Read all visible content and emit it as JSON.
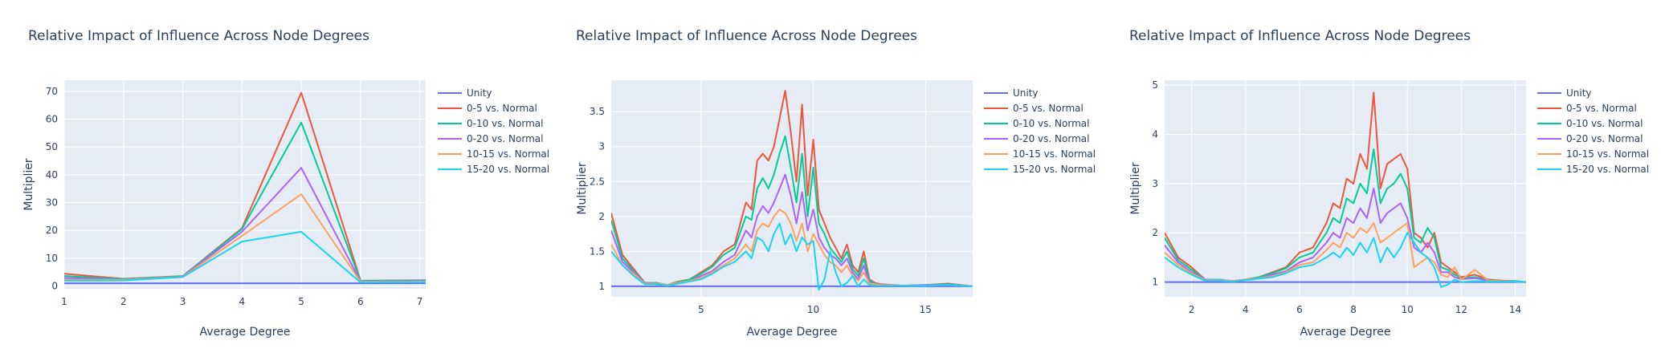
{
  "chart_data": [
    {
      "type": "line",
      "title": "Relative Impact of Influence Across Node Degrees",
      "xlabel": "Average Degree",
      "ylabel": "Multiplier",
      "xlim": [
        1,
        7.1
      ],
      "ylim": [
        -1,
        74
      ],
      "xticks": [
        1,
        2,
        3,
        4,
        5,
        6,
        7
      ],
      "yticks": [
        0,
        10,
        20,
        30,
        40,
        50,
        60,
        70
      ],
      "grid": true,
      "legend_position": "right",
      "series": [
        {
          "name": "Unity",
          "color": "#636efa",
          "x": [
            1,
            2,
            3,
            4,
            5,
            6,
            7.1
          ],
          "y": [
            1,
            1,
            1,
            1,
            1,
            1,
            1
          ]
        },
        {
          "name": "0-5 vs. Normal",
          "color": "#ef553b",
          "x": [
            1,
            2,
            3,
            4,
            5,
            6,
            7.1
          ],
          "y": [
            4.4,
            2.6,
            3.6,
            20.8,
            69.5,
            1.9,
            2.1
          ]
        },
        {
          "name": "0-10 vs. Normal",
          "color": "#00cc96",
          "x": [
            1,
            2,
            3,
            4,
            5,
            6,
            7.1
          ],
          "y": [
            3.6,
            2.5,
            3.5,
            20.5,
            58.8,
            1.8,
            2.0
          ]
        },
        {
          "name": "0-20 vs. Normal",
          "color": "#ab63fa",
          "x": [
            1,
            2,
            3,
            4,
            5,
            6,
            7.1
          ],
          "y": [
            2.9,
            2.3,
            3.4,
            19.5,
            42.5,
            1.6,
            1.8
          ]
        },
        {
          "name": "10-15 vs. Normal",
          "color": "#ffa15a",
          "x": [
            1,
            2,
            3,
            4,
            5,
            6,
            7.1
          ],
          "y": [
            2.3,
            2.2,
            3.3,
            18.0,
            33.0,
            1.5,
            1.6
          ]
        },
        {
          "name": "15-20 vs. Normal",
          "color": "#19d3f3",
          "x": [
            1,
            2,
            3,
            4,
            5,
            6,
            7.1
          ],
          "y": [
            1.9,
            2.0,
            3.2,
            16.0,
            19.5,
            1.3,
            1.4
          ]
        }
      ]
    },
    {
      "type": "line",
      "title": "Relative Impact of Influence Across Node Degrees",
      "xlabel": "Average Degree",
      "ylabel": "Multiplier",
      "xlim": [
        1,
        17.1
      ],
      "ylim": [
        0.85,
        3.95
      ],
      "xticks": [
        5,
        10,
        15
      ],
      "yticks": [
        1,
        1.5,
        2,
        2.5,
        3,
        3.5
      ],
      "grid": true,
      "legend_position": "right",
      "series": [
        {
          "name": "Unity",
          "color": "#636efa",
          "x": [
            1,
            17.1
          ],
          "y": [
            1,
            1
          ]
        },
        {
          "name": "0-5 vs. Normal",
          "color": "#ef553b",
          "x": [
            1,
            1.5,
            2,
            2.5,
            3,
            3.5,
            4,
            4.5,
            5,
            5.5,
            6,
            6.5,
            7,
            7.25,
            7.5,
            7.75,
            8,
            8.25,
            8.5,
            8.75,
            9,
            9.25,
            9.5,
            9.75,
            10,
            10.25,
            10.5,
            10.75,
            11,
            11.25,
            11.5,
            11.75,
            12,
            12.25,
            12.5,
            12.75,
            13,
            14,
            15,
            16,
            17.1
          ],
          "y": [
            2.05,
            1.45,
            1.25,
            1.05,
            1.05,
            1.02,
            1.07,
            1.1,
            1.2,
            1.3,
            1.5,
            1.6,
            2.2,
            2.1,
            2.8,
            2.9,
            2.8,
            3.0,
            3.4,
            3.8,
            3.2,
            2.5,
            3.6,
            2.3,
            3.1,
            2.1,
            1.9,
            1.7,
            1.55,
            1.4,
            1.6,
            1.3,
            1.2,
            1.5,
            1.1,
            1.05,
            1.03,
            1.01,
            1.02,
            1.04,
            1.0
          ]
        },
        {
          "name": "0-10 vs. Normal",
          "color": "#00cc96",
          "x": [
            1,
            1.5,
            2,
            2.5,
            3,
            3.5,
            4,
            4.5,
            5,
            5.5,
            6,
            6.5,
            7,
            7.25,
            7.5,
            7.75,
            8,
            8.25,
            8.5,
            8.75,
            9,
            9.25,
            9.5,
            9.75,
            10,
            10.25,
            10.5,
            10.75,
            11,
            11.25,
            11.5,
            11.75,
            12,
            12.25,
            12.5,
            12.75,
            13,
            14,
            15,
            16,
            17.1
          ],
          "y": [
            1.95,
            1.4,
            1.22,
            1.05,
            1.05,
            1.02,
            1.06,
            1.1,
            1.18,
            1.28,
            1.45,
            1.55,
            2.0,
            1.95,
            2.4,
            2.55,
            2.4,
            2.6,
            2.9,
            3.15,
            2.7,
            2.2,
            2.9,
            2.0,
            2.7,
            1.9,
            1.75,
            1.55,
            1.45,
            1.35,
            1.5,
            1.25,
            1.15,
            1.4,
            1.08,
            1.04,
            1.02,
            1.01,
            1.02,
            1.03,
            1.0
          ]
        },
        {
          "name": "0-20 vs. Normal",
          "color": "#ab63fa",
          "x": [
            1,
            1.5,
            2,
            2.5,
            3,
            3.5,
            4,
            4.5,
            5,
            5.5,
            6,
            6.5,
            7,
            7.25,
            7.5,
            7.75,
            8,
            8.25,
            8.5,
            8.75,
            9,
            9.25,
            9.5,
            9.75,
            10,
            10.25,
            10.5,
            10.75,
            11,
            11.25,
            11.5,
            11.75,
            12,
            12.25,
            12.5,
            12.75,
            13,
            14,
            15,
            16,
            17.1
          ],
          "y": [
            1.8,
            1.35,
            1.2,
            1.05,
            1.04,
            1.02,
            1.05,
            1.08,
            1.15,
            1.22,
            1.35,
            1.45,
            1.8,
            1.7,
            2.0,
            2.15,
            2.05,
            2.2,
            2.4,
            2.6,
            2.3,
            1.9,
            2.35,
            1.8,
            2.1,
            1.7,
            1.55,
            1.45,
            1.4,
            1.3,
            1.4,
            1.2,
            1.1,
            1.3,
            1.05,
            1.03,
            1.02,
            1.01,
            1.02,
            1.02,
            1.0
          ]
        },
        {
          "name": "10-15 vs. Normal",
          "color": "#ffa15a",
          "x": [
            1,
            1.5,
            2,
            2.5,
            3,
            3.5,
            4,
            4.5,
            5,
            5.5,
            6,
            6.5,
            7,
            7.25,
            7.5,
            7.75,
            8,
            8.25,
            8.5,
            8.75,
            9,
            9.25,
            9.5,
            9.75,
            10,
            10.25,
            10.5,
            10.75,
            11,
            11.25,
            11.5,
            11.75,
            12,
            12.25,
            12.5,
            12.75,
            13,
            14,
            15,
            16,
            17.1
          ],
          "y": [
            1.6,
            1.3,
            1.18,
            1.04,
            1.04,
            1.02,
            1.05,
            1.08,
            1.12,
            1.2,
            1.3,
            1.4,
            1.6,
            1.5,
            1.8,
            1.9,
            1.85,
            2.0,
            2.1,
            2.05,
            1.9,
            1.65,
            1.9,
            1.5,
            1.75,
            1.6,
            1.45,
            1.35,
            1.3,
            1.2,
            1.3,
            1.15,
            1.08,
            1.2,
            1.04,
            1.03,
            1.02,
            1.01,
            1.01,
            1.02,
            1.0
          ]
        },
        {
          "name": "15-20 vs. Normal",
          "color": "#19d3f3",
          "x": [
            1,
            1.5,
            2,
            2.5,
            3,
            3.5,
            4,
            4.5,
            5,
            5.5,
            6,
            6.5,
            7,
            7.25,
            7.5,
            7.75,
            8,
            8.25,
            8.5,
            8.75,
            9,
            9.25,
            9.5,
            9.75,
            10,
            10.25,
            10.5,
            10.75,
            11,
            11.25,
            11.5,
            11.75,
            12,
            12.25,
            12.5,
            12.75,
            13,
            14,
            15,
            16,
            17.1
          ],
          "y": [
            1.5,
            1.3,
            1.15,
            1.03,
            1.03,
            1.01,
            1.04,
            1.07,
            1.1,
            1.18,
            1.28,
            1.35,
            1.5,
            1.4,
            1.7,
            1.65,
            1.5,
            1.75,
            1.9,
            1.6,
            1.75,
            1.5,
            1.7,
            1.6,
            1.65,
            0.95,
            1.1,
            1.5,
            1.2,
            1.0,
            1.05,
            1.15,
            1.0,
            1.1,
            1.02,
            1.01,
            1.01,
            1.01,
            1.01,
            1.02,
            1.0
          ]
        }
      ]
    },
    {
      "type": "line",
      "title": "Relative Impact of Influence Across Node Degrees",
      "xlabel": "Average Degree",
      "ylabel": "Multiplier",
      "xlim": [
        1,
        14.4
      ],
      "ylim": [
        0.7,
        5.1
      ],
      "xticks": [
        2,
        4,
        6,
        8,
        10,
        12,
        14
      ],
      "yticks": [
        1,
        2,
        3,
        4,
        5
      ],
      "grid": true,
      "legend_position": "right",
      "series": [
        {
          "name": "Unity",
          "color": "#636efa",
          "x": [
            1,
            14.4
          ],
          "y": [
            1,
            1
          ]
        },
        {
          "name": "0-5 vs. Normal",
          "color": "#ef553b",
          "x": [
            1,
            1.5,
            2,
            2.5,
            3,
            3.5,
            4,
            4.5,
            5,
            5.5,
            6,
            6.5,
            7,
            7.25,
            7.5,
            7.75,
            8,
            8.25,
            8.5,
            8.75,
            9,
            9.25,
            9.5,
            9.75,
            10,
            10.25,
            10.5,
            10.75,
            11,
            11.25,
            11.5,
            11.75,
            12,
            12.5,
            13,
            13.5,
            14,
            14.4
          ],
          "y": [
            2.0,
            1.5,
            1.3,
            1.05,
            1.05,
            1.02,
            1.05,
            1.1,
            1.2,
            1.3,
            1.6,
            1.7,
            2.2,
            2.6,
            2.5,
            3.1,
            3.0,
            3.6,
            3.3,
            4.85,
            2.9,
            3.4,
            3.5,
            3.6,
            3.3,
            2.0,
            1.9,
            1.7,
            2.0,
            1.4,
            1.3,
            1.2,
            1.1,
            1.15,
            1.05,
            1.03,
            1.02,
            1.0
          ]
        },
        {
          "name": "0-10 vs. Normal",
          "color": "#00cc96",
          "x": [
            1,
            1.5,
            2,
            2.5,
            3,
            3.5,
            4,
            4.5,
            5,
            5.5,
            6,
            6.5,
            7,
            7.25,
            7.5,
            7.75,
            8,
            8.25,
            8.5,
            8.75,
            9,
            9.25,
            9.5,
            9.75,
            10,
            10.25,
            10.5,
            10.75,
            11,
            11.25,
            11.5,
            11.75,
            12,
            12.5,
            13,
            13.5,
            14,
            14.4
          ],
          "y": [
            1.9,
            1.45,
            1.25,
            1.05,
            1.05,
            1.02,
            1.05,
            1.1,
            1.18,
            1.28,
            1.5,
            1.6,
            2.0,
            2.3,
            2.2,
            2.7,
            2.6,
            3.0,
            2.8,
            3.7,
            2.6,
            2.9,
            3.0,
            3.2,
            2.9,
            1.9,
            1.8,
            2.1,
            1.9,
            1.3,
            1.25,
            1.15,
            1.08,
            1.1,
            1.04,
            1.02,
            1.02,
            1.0
          ]
        },
        {
          "name": "0-20 vs. Normal",
          "color": "#ab63fa",
          "x": [
            1,
            1.5,
            2,
            2.5,
            3,
            3.5,
            4,
            4.5,
            5,
            5.5,
            6,
            6.5,
            7,
            7.25,
            7.5,
            7.75,
            8,
            8.25,
            8.5,
            8.75,
            9,
            9.25,
            9.5,
            9.75,
            10,
            10.25,
            10.5,
            10.75,
            11,
            11.25,
            11.5,
            11.75,
            12,
            12.5,
            13,
            13.5,
            14,
            14.4
          ],
          "y": [
            1.75,
            1.4,
            1.2,
            1.05,
            1.04,
            1.02,
            1.05,
            1.08,
            1.15,
            1.22,
            1.4,
            1.5,
            1.8,
            2.0,
            1.9,
            2.3,
            2.2,
            2.5,
            2.3,
            2.9,
            2.2,
            2.4,
            2.5,
            2.6,
            2.3,
            1.7,
            1.6,
            1.8,
            1.6,
            1.2,
            1.2,
            1.1,
            1.06,
            1.08,
            1.03,
            1.02,
            1.01,
            1.0
          ]
        },
        {
          "name": "10-15 vs. Normal",
          "color": "#ffa15a",
          "x": [
            1,
            1.5,
            2,
            2.5,
            3,
            3.5,
            4,
            4.5,
            5,
            5.5,
            6,
            6.5,
            7,
            7.25,
            7.5,
            7.75,
            8,
            8.25,
            8.5,
            8.75,
            9,
            9.25,
            9.5,
            9.75,
            10,
            10.25,
            10.5,
            10.75,
            11,
            11.25,
            11.5,
            11.75,
            12,
            12.5,
            13,
            13.5,
            14,
            14.4
          ],
          "y": [
            1.6,
            1.35,
            1.18,
            1.04,
            1.04,
            1.02,
            1.05,
            1.08,
            1.12,
            1.2,
            1.35,
            1.4,
            1.65,
            1.8,
            1.7,
            2.0,
            1.9,
            2.1,
            2.0,
            2.2,
            1.8,
            1.9,
            2.0,
            2.1,
            2.2,
            1.3,
            1.4,
            1.5,
            1.4,
            1.15,
            1.1,
            1.3,
            1.05,
            1.25,
            1.03,
            1.02,
            1.01,
            1.0
          ]
        },
        {
          "name": "15-20 vs. Normal",
          "color": "#19d3f3",
          "x": [
            1,
            1.5,
            2,
            2.5,
            3,
            3.5,
            4,
            4.5,
            5,
            5.5,
            6,
            6.5,
            7,
            7.25,
            7.5,
            7.75,
            8,
            8.25,
            8.5,
            8.75,
            9,
            9.25,
            9.5,
            9.75,
            10,
            10.25,
            10.5,
            10.75,
            11,
            11.25,
            11.5,
            11.75,
            12,
            12.5,
            13,
            13.5,
            14,
            14.4
          ],
          "y": [
            1.5,
            1.3,
            1.15,
            1.03,
            1.03,
            1.01,
            1.04,
            1.07,
            1.1,
            1.18,
            1.3,
            1.35,
            1.5,
            1.6,
            1.5,
            1.7,
            1.55,
            1.8,
            1.6,
            1.9,
            1.4,
            1.7,
            1.5,
            1.7,
            2.0,
            1.8,
            1.6,
            1.5,
            1.3,
            0.9,
            0.95,
            1.05,
            1.0,
            1.02,
            1.01,
            1.01,
            1.01,
            1.0
          ]
        }
      ]
    }
  ]
}
